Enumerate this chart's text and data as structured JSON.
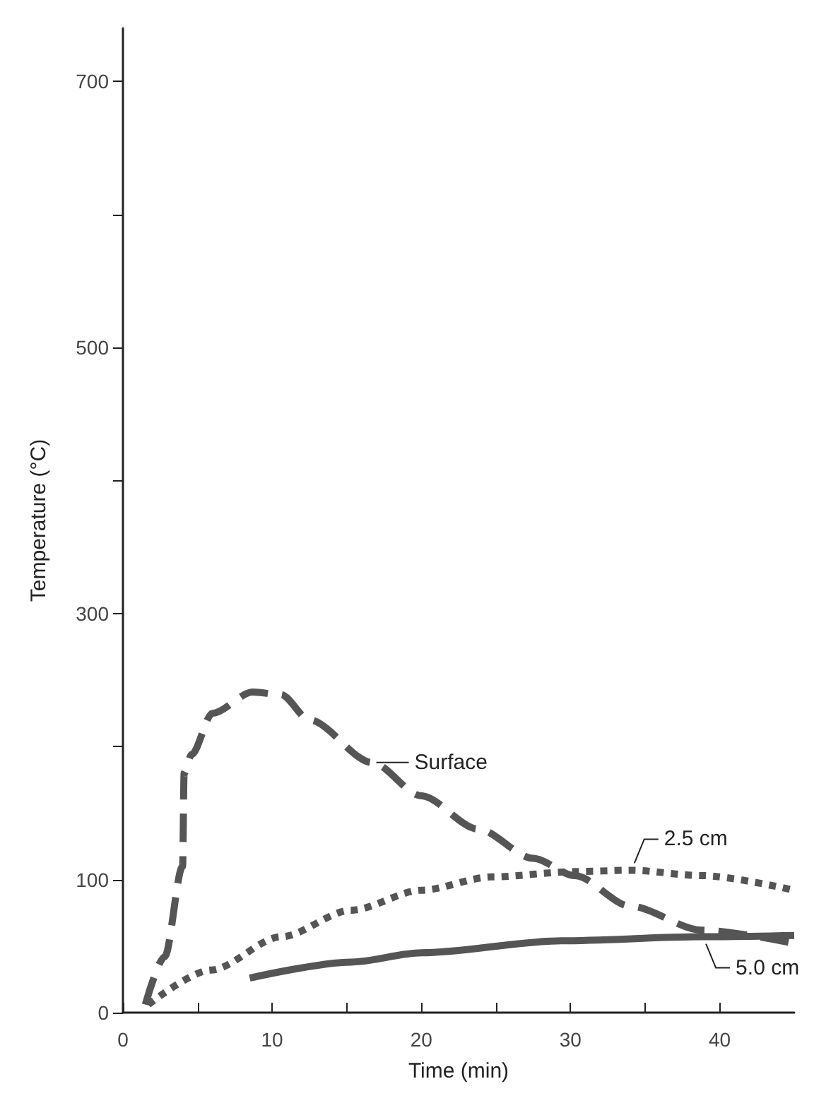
{
  "chart_data": {
    "type": "line",
    "xlabel": "Time (min)",
    "ylabel": "Temperature (°C)",
    "xlim": [
      0,
      45
    ],
    "xticks": [
      0,
      {
        "value": 5,
        "label": null
      },
      10,
      {
        "value": 15,
        "label": null
      },
      20,
      {
        "value": 25,
        "label": null
      },
      30,
      {
        "value": 35,
        "label": null
      },
      40
    ],
    "ylim": [
      0,
      740
    ],
    "yticks": [
      0,
      100,
      {
        "value": 200,
        "label": null
      },
      300,
      {
        "value": 400,
        "label": null
      },
      500,
      {
        "value": 600,
        "label": null
      },
      700
    ],
    "marker": "none",
    "series": [
      {
        "color": "#555555",
        "line_style": "dashed",
        "x": [
          1.5,
          2.8,
          4,
          4.1,
          4.6,
          6,
          8.7,
          10.6,
          12.5,
          16.7,
          20,
          23.8,
          27.5,
          30.3,
          34,
          38.8,
          45
        ],
        "values": [
          6,
          42,
          110,
          180,
          194,
          225,
          241,
          239,
          220,
          188,
          163,
          138,
          116,
          103,
          80,
          62,
          52
        ]
      },
      {
        "color": "#555555",
        "line_style": "dotted",
        "x": [
          1.7,
          5.9,
          10.6,
          15.3,
          20,
          24.7,
          30.3,
          34,
          38.8,
          45
        ],
        "values": [
          6,
          32,
          57,
          77,
          92,
          102,
          106,
          107,
          103,
          92
        ]
      },
      {
        "color": "#555555",
        "line_style": "solid",
        "x": [
          8.5,
          15.3,
          20,
          29.4,
          38.8,
          45
        ],
        "values": [
          26,
          38,
          45,
          54,
          57,
          58
        ]
      }
    ],
    "annotations": [
      {
        "text": "Surface",
        "x": 16.7,
        "y": 188
      },
      {
        "text": "2.5 cm",
        "x": 34,
        "y": 107
      },
      {
        "text": "5.0 cm",
        "x": 38.8,
        "y": 57
      }
    ]
  }
}
